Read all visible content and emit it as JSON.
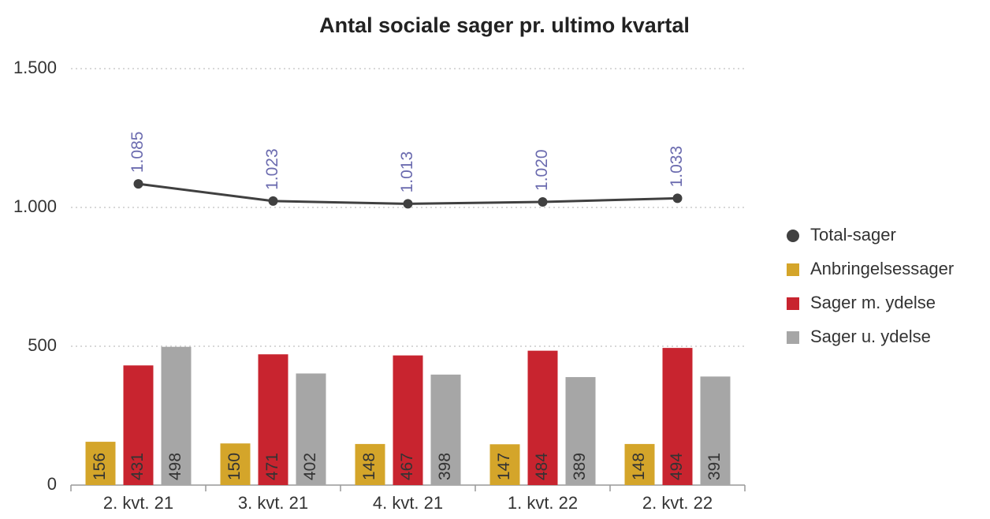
{
  "chart_data": {
    "type": "bar",
    "title": "Antal sociale sager pr. ultimo kvartal",
    "categories": [
      "2. kvt. 21",
      "3. kvt. 21",
      "4. kvt. 21",
      "1. kvt. 22",
      "2. kvt. 22"
    ],
    "series": [
      {
        "name": "Total-sager",
        "type": "line",
        "color": "#404040",
        "values": [
          1085,
          1023,
          1013,
          1020,
          1033
        ],
        "value_labels": [
          "1.085",
          "1.023",
          "1.013",
          "1.020",
          "1.033"
        ]
      },
      {
        "name": "Anbringelsessager",
        "type": "bar",
        "color": "#d4a52a",
        "values": [
          156,
          150,
          148,
          147,
          148
        ]
      },
      {
        "name": "Sager m. ydelse",
        "type": "bar",
        "color": "#c8242f",
        "values": [
          431,
          471,
          467,
          484,
          494
        ]
      },
      {
        "name": "Sager u. ydelse",
        "type": "bar",
        "color": "#a6a6a6",
        "values": [
          498,
          402,
          398,
          389,
          391
        ]
      }
    ],
    "ylim": [
      0,
      1500
    ],
    "yticks": [
      0,
      500,
      {
        "value": 1000,
        "label": "1.000"
      },
      {
        "value": 1500,
        "label": "1.500"
      }
    ],
    "grid": true,
    "legend": "right"
  }
}
